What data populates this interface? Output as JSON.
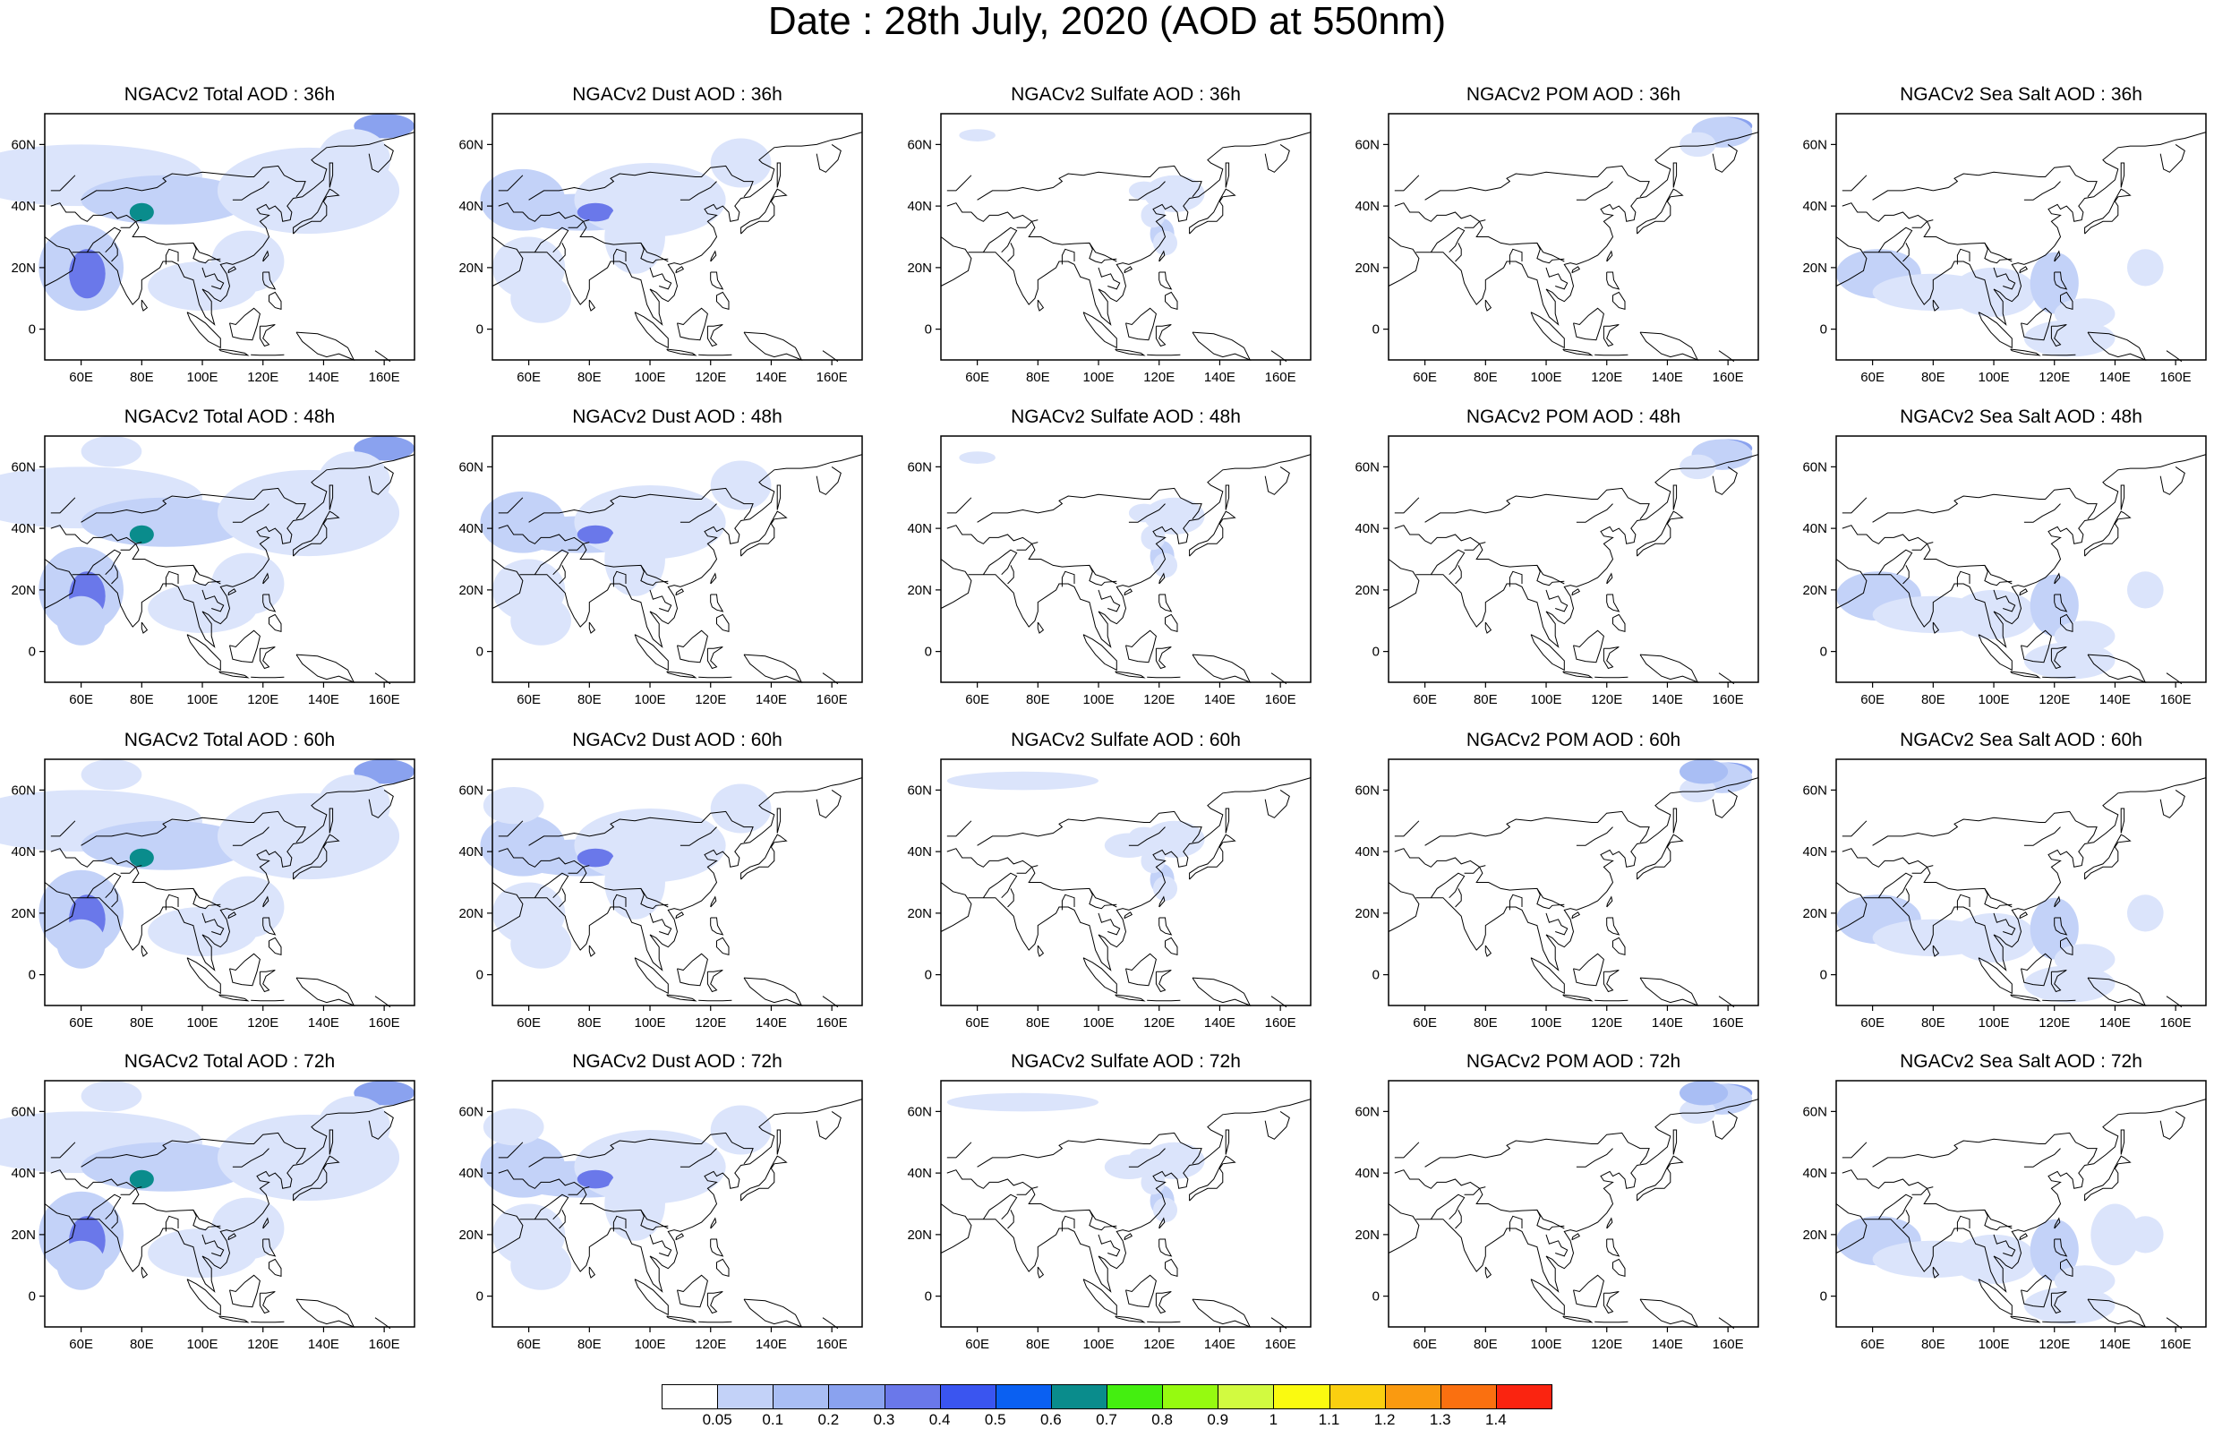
{
  "title": "Date : 28th July, 2020 (AOD at 550nm)",
  "lon_ticks": [
    "60E",
    "80E",
    "100E",
    "120E",
    "140E",
    "160E"
  ],
  "lat_ticks": [
    "60N",
    "40N",
    "20N",
    "0"
  ],
  "panel_titles": [
    [
      "NGACv2 Total AOD : 36h",
      "NGACv2 Dust AOD : 36h",
      "NGACv2 Sulfate AOD : 36h",
      "NGACv2 POM AOD : 36h",
      "NGACv2 Sea Salt AOD : 36h"
    ],
    [
      "NGACv2 Total AOD : 48h",
      "NGACv2 Dust AOD : 48h",
      "NGACv2 Sulfate AOD : 48h",
      "NGACv2 POM AOD : 48h",
      "NGACv2 Sea Salt AOD : 48h"
    ],
    [
      "NGACv2 Total AOD : 60h",
      "NGACv2 Dust AOD : 60h",
      "NGACv2 Sulfate AOD : 60h",
      "NGACv2 POM AOD : 60h",
      "NGACv2 Sea Salt AOD : 60h"
    ],
    [
      "NGACv2 Total AOD : 72h",
      "NGACv2 Dust AOD : 72h",
      "NGACv2 Sulfate AOD : 72h",
      "NGACv2 POM AOD : 72h",
      "NGACv2 Sea Salt  AOD : 72h"
    ]
  ],
  "colorbar": {
    "labels": [
      "0.05",
      "0.1",
      "0.2",
      "0.3",
      "0.4",
      "0.5",
      "0.6",
      "0.7",
      "0.8",
      "0.9",
      "1",
      "1.1",
      "1.2",
      "1.3",
      "1.4"
    ],
    "colors": [
      "#ffffff",
      "#dbe4fb",
      "#c3d2f8",
      "#a9bef4",
      "#8aa2ef",
      "#6a78ea",
      "#3a55f0",
      "#0a60f2",
      "#0a8c8c",
      "#44ef10",
      "#96fa10",
      "#d2fa40",
      "#fafa10",
      "#facf10",
      "#fa9a10",
      "#fa7010",
      "#fa2410"
    ]
  },
  "map_extent": {
    "lon": [
      48,
      170
    ],
    "lat": [
      -10,
      70
    ]
  }
}
